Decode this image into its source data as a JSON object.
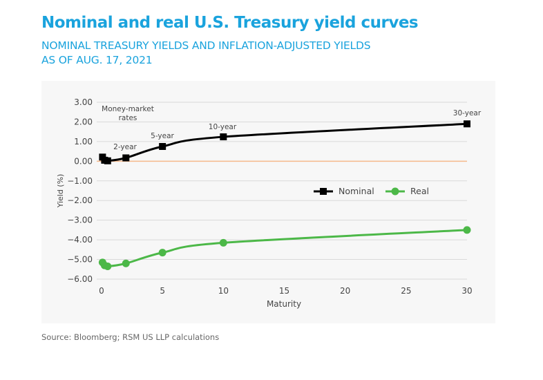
{
  "chart_data": {
    "type": "line",
    "title": "Nominal and real U.S. Treasury yield curves",
    "subtitle": [
      "NOMINAL TREASURY YIELDS AND INFLATION-ADJUSTED YIELDS",
      "AS OF AUG. 17, 2021"
    ],
    "xlabel": "Maturity",
    "ylabel": "Yield (%)",
    "xlim": [
      0,
      30
    ],
    "ylim": [
      -6,
      3
    ],
    "xticks": [
      "0",
      "5",
      "10",
      "15",
      "20",
      "25",
      "30"
    ],
    "yticks": [
      "3.00",
      "2.00",
      "1.00",
      "0.00",
      "-1.00",
      "-2.00",
      "-3.00",
      "-4.00",
      "-5.00",
      "-6.00"
    ],
    "legend_position": "center-right",
    "series": [
      {
        "name": "Nominal",
        "color": "#000000",
        "marker": "square",
        "x": [
          0.08,
          0.25,
          0.5,
          2,
          5,
          10,
          30
        ],
        "y": [
          0.21,
          0.05,
          0.02,
          0.17,
          0.75,
          1.24,
          1.9
        ]
      },
      {
        "name": "Real",
        "color": "#4cb848",
        "marker": "circle",
        "x": [
          0.08,
          0.25,
          0.5,
          2,
          5,
          10,
          30
        ],
        "y": [
          -5.15,
          -5.3,
          -5.35,
          -5.2,
          -4.65,
          -4.15,
          -3.5
        ]
      }
    ],
    "annotations": [
      "Money-market",
      "rates",
      "2-year",
      "5-year",
      "10-year",
      "30-year"
    ],
    "zero_line_color": "#f5b88a"
  },
  "source": "Source: Bloomberg; RSM US LLP calculations"
}
